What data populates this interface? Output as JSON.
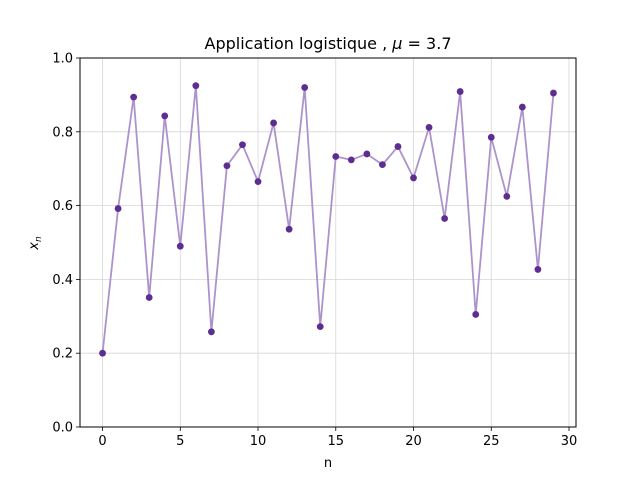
{
  "chart_data": {
    "type": "line",
    "title_text": "Application logistique , ",
    "title_mu": "μ",
    "title_eq": " = 3.7",
    "xlabel": "n",
    "ylabel_base": "x",
    "ylabel_sub": "n",
    "xlim": [
      -1.45,
      30.45
    ],
    "ylim": [
      0.0,
      1.0
    ],
    "xticks": [
      "0",
      "5",
      "10",
      "15",
      "20",
      "25",
      "30"
    ],
    "yticks": [
      "0.0",
      "0.2",
      "0.4",
      "0.6",
      "0.8",
      "1.0"
    ],
    "grid": true,
    "line_color": "#ad93cc",
    "marker_color": "#5e2d91",
    "series": [
      {
        "x": [
          0,
          1,
          2,
          3,
          4,
          5,
          6,
          7,
          8,
          9,
          10,
          11,
          12,
          13,
          14,
          15,
          16,
          17,
          18,
          19,
          20,
          21,
          22,
          23,
          24,
          25,
          26,
          27,
          28,
          29
        ],
        "values": [
          0.2,
          0.592,
          0.894,
          0.351,
          0.843,
          0.49,
          0.925,
          0.258,
          0.708,
          0.765,
          0.665,
          0.824,
          0.536,
          0.92,
          0.272,
          0.733,
          0.724,
          0.74,
          0.711,
          0.76,
          0.675,
          0.812,
          0.565,
          0.909,
          0.305,
          0.785,
          0.625,
          0.867,
          0.427,
          0.905
        ]
      }
    ]
  }
}
